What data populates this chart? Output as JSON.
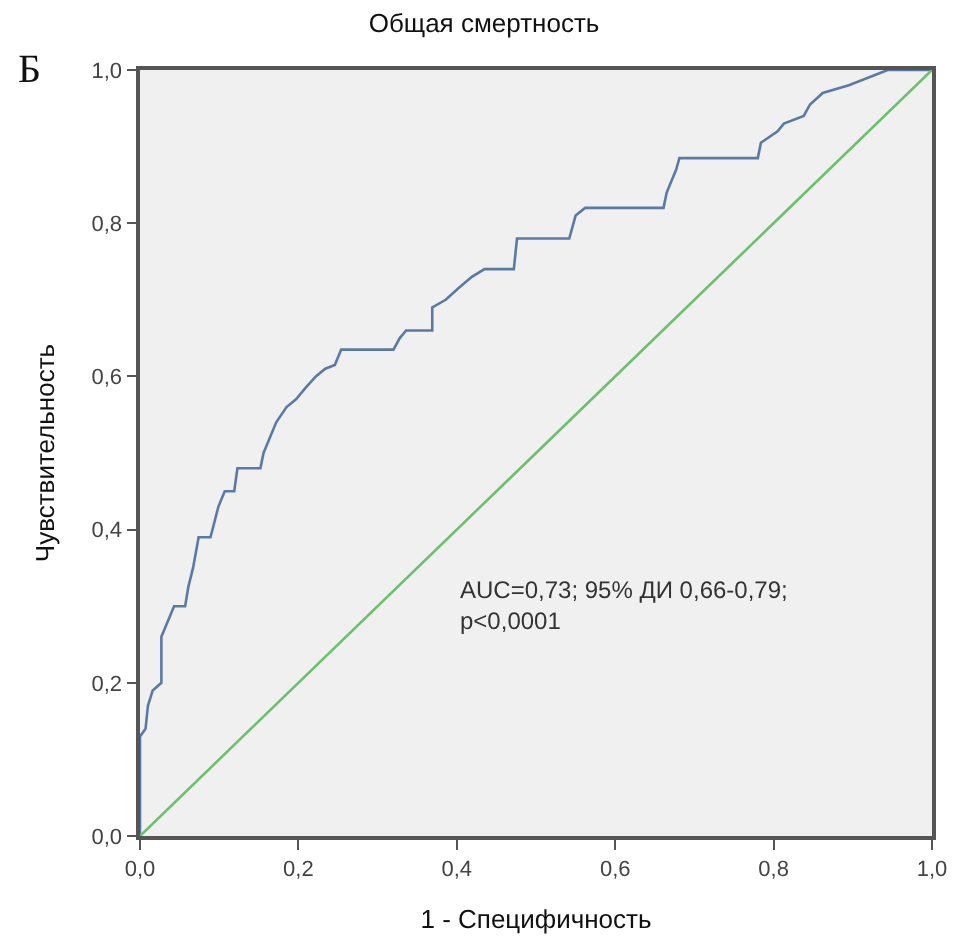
{
  "chart_data": {
    "type": "line",
    "title": "Общая смертность",
    "xlabel": "1 - Специфичность",
    "ylabel": "Чувствительность",
    "annotations": [
      "Б",
      "AUC=0,73; 95% ДИ 0,66-0,79;\np<0,0001"
    ],
    "series": [
      {
        "color": "#5a7aa6",
        "x": [
          0,
          0,
          0.007,
          0.01,
          0.016,
          0.027,
          0.027,
          0.037,
          0.043,
          0.057,
          0.061,
          0.067,
          0.074,
          0.089,
          0.099,
          0.107,
          0.119,
          0.123,
          0.152,
          0.156,
          0.16,
          0.172,
          0.185,
          0.197,
          0.209,
          0.222,
          0.234,
          0.246,
          0.254,
          0.32,
          0.328,
          0.336,
          0.369,
          0.369,
          0.386,
          0.402,
          0.419,
          0.435,
          0.472,
          0.476,
          0.542,
          0.55,
          0.562,
          0.661,
          0.665,
          0.677,
          0.681,
          0.78,
          0.784,
          0.805,
          0.813,
          0.838,
          0.846,
          0.862,
          0.895,
          0.944,
          1.0
        ],
        "values": [
          0,
          0.13,
          0.14,
          0.17,
          0.19,
          0.2,
          0.26,
          0.285,
          0.3,
          0.3,
          0.325,
          0.35,
          0.39,
          0.39,
          0.43,
          0.45,
          0.45,
          0.48,
          0.48,
          0.5,
          0.51,
          0.54,
          0.56,
          0.57,
          0.585,
          0.6,
          0.61,
          0.615,
          0.635,
          0.635,
          0.65,
          0.66,
          0.66,
          0.69,
          0.7,
          0.715,
          0.73,
          0.74,
          0.74,
          0.78,
          0.78,
          0.81,
          0.82,
          0.82,
          0.84,
          0.87,
          0.885,
          0.885,
          0.905,
          0.92,
          0.93,
          0.94,
          0.955,
          0.97,
          0.98,
          1.0,
          1.0
        ]
      },
      {
        "color": "#6cbf6c",
        "x": [
          0,
          1
        ],
        "values": [
          0,
          1
        ]
      }
    ],
    "xlim": [
      0,
      1
    ],
    "ylim": [
      0,
      1
    ],
    "xticks": [
      {
        "value": 0,
        "label": "0,0"
      },
      {
        "value": 0.2,
        "label": "0,2"
      },
      {
        "value": 0.4,
        "label": "0,4"
      },
      {
        "value": 0.6,
        "label": "0,6"
      },
      {
        "value": 0.8,
        "label": "0,8"
      },
      {
        "value": 1,
        "label": "1,0"
      }
    ],
    "yticks": [
      {
        "value": 0,
        "label": "0,0"
      },
      {
        "value": 0.2,
        "label": "0,2"
      },
      {
        "value": 0.4,
        "label": "0,4"
      },
      {
        "value": 0.6,
        "label": "0,6"
      },
      {
        "value": 0.8,
        "label": "0,8"
      },
      {
        "value": 1,
        "label": "1,0"
      }
    ],
    "grid": false,
    "marker": "none",
    "line_style": "solid"
  }
}
